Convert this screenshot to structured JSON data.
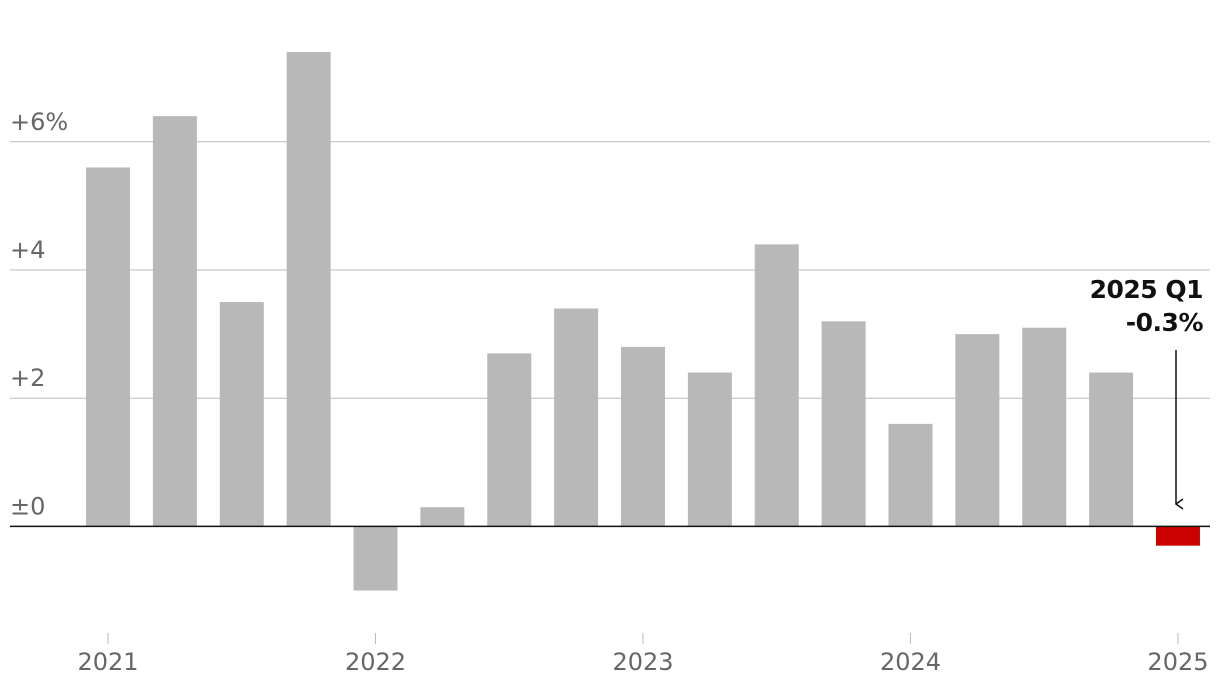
{
  "chart_data": {
    "type": "bar",
    "categories": [
      "2021",
      null,
      null,
      null,
      "2022",
      null,
      null,
      null,
      "2023",
      null,
      null,
      null,
      "2024",
      null,
      null,
      null,
      "2025"
    ],
    "values": [
      5.6,
      6.4,
      3.5,
      7.4,
      -1.0,
      0.3,
      2.7,
      3.4,
      2.8,
      2.4,
      4.4,
      3.2,
      1.6,
      3.0,
      3.1,
      2.4,
      -0.3
    ],
    "colors": [
      "#b8b8b8",
      "#b8b8b8",
      "#b8b8b8",
      "#b8b8b8",
      "#b8b8b8",
      "#b8b8b8",
      "#b8b8b8",
      "#b8b8b8",
      "#b8b8b8",
      "#b8b8b8",
      "#b8b8b8",
      "#b8b8b8",
      "#b8b8b8",
      "#b8b8b8",
      "#b8b8b8",
      "#b8b8b8",
      "#cc0000"
    ],
    "ylim": [
      -1.6,
      7.9
    ],
    "yticks": [
      {
        "value": 0,
        "label": "±0"
      },
      {
        "value": 2,
        "label": "+2"
      },
      {
        "value": 4,
        "label": "+4"
      },
      {
        "value": 6,
        "label": "+6%"
      }
    ],
    "grid": true,
    "annotation": [
      "2025 Q1",
      "-0.3%"
    ]
  }
}
